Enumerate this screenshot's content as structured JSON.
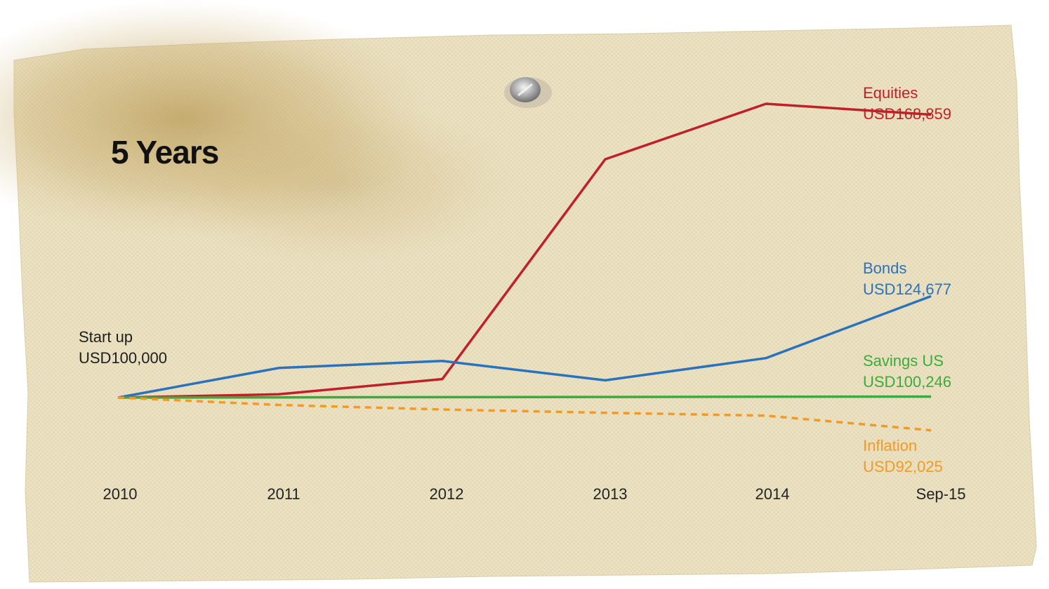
{
  "title": "5 Years",
  "start_label": {
    "line1": "Start up",
    "line2": "USD100,000"
  },
  "chart_data": {
    "type": "line",
    "title": "5 Years",
    "xlabel": "",
    "ylabel": "",
    "categories": [
      "2010",
      "2011",
      "2012",
      "2013",
      "2014",
      "Sep-15"
    ],
    "ylim": [
      88000,
      172000
    ],
    "grid": false,
    "legend": "none (series labelled at right end of lines)",
    "series": [
      {
        "name": "Equities",
        "end_label": "USD168,859",
        "color": "#c0202a",
        "dashed": false,
        "values": [
          100000,
          100800,
          104500,
          158000,
          171500,
          168859
        ]
      },
      {
        "name": "Bonds",
        "end_label": "USD124,677",
        "color": "#2a72bd",
        "dashed": false,
        "values": [
          100000,
          107200,
          108900,
          104200,
          109600,
          124677
        ]
      },
      {
        "name": "Savings US",
        "end_label": "USD100,246",
        "color": "#3aac3c",
        "dashed": false,
        "values": [
          100000,
          100050,
          100100,
          100150,
          100200,
          100246
        ]
      },
      {
        "name": "Inflation",
        "end_label": "USD92,025",
        "color": "#f39a26",
        "dashed": true,
        "values": [
          100000,
          98200,
          97100,
          96300,
          95600,
          92025
        ]
      }
    ]
  }
}
